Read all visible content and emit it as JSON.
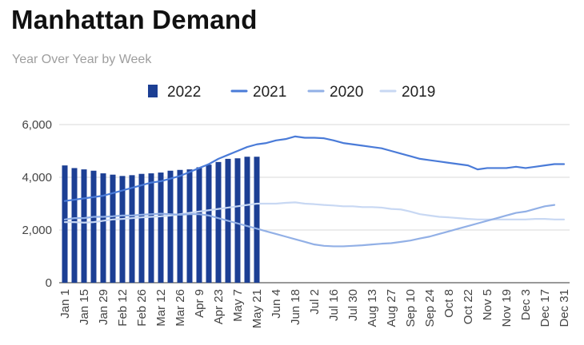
{
  "chart_data": {
    "type": "bar",
    "title": "Manhattan Demand",
    "subtitle": "Year Over Year by Week",
    "xlabel": "",
    "ylabel": "",
    "ylim": [
      0,
      6000
    ],
    "y_ticks": [
      "0",
      "2,000",
      "4,000",
      "6,000"
    ],
    "y_tick_values": [
      0,
      2000,
      4000,
      6000
    ],
    "grid": true,
    "legend_position": "top",
    "weeks": [
      "Jan 1",
      "Jan 8",
      "Jan 15",
      "Jan 22",
      "Jan 29",
      "Feb 5",
      "Feb 12",
      "Feb 19",
      "Feb 26",
      "Mar 5",
      "Mar 12",
      "Mar 19",
      "Mar 26",
      "Apr 2",
      "Apr 9",
      "Apr 16",
      "Apr 23",
      "Apr 30",
      "May 7",
      "May 14",
      "May 21",
      "May 28",
      "Jun 4",
      "Jun 11",
      "Jun 18",
      "Jun 25",
      "Jul 2",
      "Jul 9",
      "Jul 16",
      "Jul 23",
      "Jul 30",
      "Aug 6",
      "Aug 13",
      "Aug 20",
      "Aug 27",
      "Sep 3",
      "Sep 10",
      "Sep 17",
      "Sep 24",
      "Oct 1",
      "Oct 8",
      "Oct 15",
      "Oct 22",
      "Oct 29",
      "Nov 5",
      "Nov 12",
      "Nov 19",
      "Nov 26",
      "Dec 3",
      "Dec 10",
      "Dec 17",
      "Dec 24",
      "Dec 31"
    ],
    "x_tick_labels": [
      "Jan 1",
      "Jan 15",
      "Jan 29",
      "Feb 12",
      "Feb 26",
      "Mar 12",
      "Mar 26",
      "Apr 9",
      "Apr 23",
      "May 7",
      "May 21",
      "Jun 4",
      "Jun 18",
      "Jul 2",
      "Jul 16",
      "Jul 30",
      "Aug 13",
      "Aug 27",
      "Sep 10",
      "Sep 24",
      "Oct 8",
      "Oct 22",
      "Nov 5",
      "Nov 19",
      "Dec 3",
      "Dec 17",
      "Dec 31"
    ],
    "series": [
      {
        "name": "2022",
        "type": "bar",
        "color": "#1c3f94",
        "values": [
          4450,
          4350,
          4300,
          4250,
          4150,
          4100,
          4050,
          4080,
          4130,
          4150,
          4180,
          4250,
          4280,
          4300,
          4380,
          4480,
          4580,
          4700,
          4720,
          4780,
          4780
        ]
      },
      {
        "name": "2021",
        "type": "line",
        "color": "#4a7bd8",
        "values": [
          3100,
          3150,
          3200,
          3250,
          3300,
          3400,
          3500,
          3600,
          3700,
          3800,
          3850,
          3950,
          4050,
          4200,
          4350,
          4500,
          4700,
          4850,
          5000,
          5150,
          5250,
          5300,
          5400,
          5450,
          5550,
          5500,
          5500,
          5480,
          5400,
          5300,
          5250,
          5200,
          5150,
          5100,
          5000,
          4900,
          4800,
          4700,
          4650,
          4600,
          4550,
          4500,
          4450,
          4300,
          4350,
          4350,
          4350,
          4400,
          4350,
          4400,
          4450,
          4500,
          4500
        ]
      },
      {
        "name": "2020",
        "type": "line",
        "color": "#92b0e6",
        "values": [
          2400,
          2450,
          2450,
          2500,
          2500,
          2520,
          2550,
          2550,
          2580,
          2600,
          2620,
          2600,
          2580,
          2600,
          2600,
          2550,
          2450,
          2350,
          2250,
          2150,
          2050,
          1950,
          1850,
          1750,
          1650,
          1550,
          1450,
          1400,
          1380,
          1380,
          1400,
          1420,
          1450,
          1480,
          1500,
          1550,
          1600,
          1680,
          1750,
          1850,
          1950,
          2050,
          2150,
          2250,
          2350,
          2450,
          2550,
          2650,
          2700,
          2800,
          2900,
          2950,
          null
        ]
      },
      {
        "name": "2019",
        "type": "line",
        "color": "#c8d8f3",
        "values": [
          2300,
          2300,
          2280,
          2300,
          2350,
          2400,
          2420,
          2450,
          2480,
          2500,
          2520,
          2550,
          2600,
          2650,
          2700,
          2750,
          2800,
          2850,
          2900,
          2950,
          3000,
          3000,
          3000,
          3030,
          3050,
          3000,
          2980,
          2950,
          2930,
          2900,
          2900,
          2870,
          2870,
          2850,
          2800,
          2780,
          2700,
          2600,
          2550,
          2500,
          2480,
          2450,
          2420,
          2400,
          2400,
          2400,
          2400,
          2400,
          2400,
          2420,
          2420,
          2400,
          2400
        ]
      }
    ]
  }
}
